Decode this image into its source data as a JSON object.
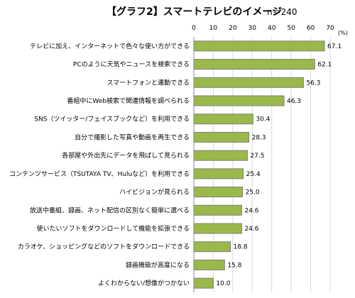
{
  "header": {
    "title": "【グラフ2】スマートテレビのイメージ",
    "sample": "n＝240"
  },
  "chart_data": {
    "type": "bar",
    "orientation": "horizontal",
    "unit_label": "(%)",
    "xlim": [
      0,
      70
    ],
    "ticks": [
      "0",
      "10",
      "20",
      "30",
      "40",
      "50",
      "60",
      "70"
    ],
    "categories": [
      "テレビに加え、インターネットで色々な使い方ができる",
      "PCのように天気やニュースを検索できる",
      "スマートフォンと連動できる",
      "番組中にWeb検索で関連情報を調べられる",
      "SNS（ツイッター/フェイスブックなど）を利用できる",
      "自分で撮影した写真や動画を再生できる",
      "各部屋や外出先にデータを飛ばして見られる",
      "コンテンツサービス（TSUTAYA TV、Huluなど）を利用できる",
      "ハイビジョンが見られる",
      "放送中番組、録画、ネット配信の区別なく簡単に選べる",
      "使いたいソフトをダウンロードして機能を拡張できる",
      "カラオケ、ショッピングなどのソフトをダウンロードできる",
      "録画機能が高度になる",
      "よくわからない/想像がつかない"
    ],
    "values": [
      67.1,
      62.1,
      56.3,
      46.3,
      30.4,
      28.3,
      27.5,
      25.4,
      25.0,
      24.6,
      24.6,
      18.8,
      15.8,
      10.0
    ],
    "value_labels": [
      "67.1",
      "62.1",
      "56.3",
      "46.3",
      "30.4",
      "28.3",
      "27.5",
      "25.4",
      "25.0",
      "24.6",
      "24.6",
      "18.8",
      "15.8",
      "10.0"
    ],
    "grid": true,
    "colors": {
      "bar": "#9bb84a",
      "bar_border": "#7f7f7f",
      "grid": "#d9d9d9"
    }
  }
}
